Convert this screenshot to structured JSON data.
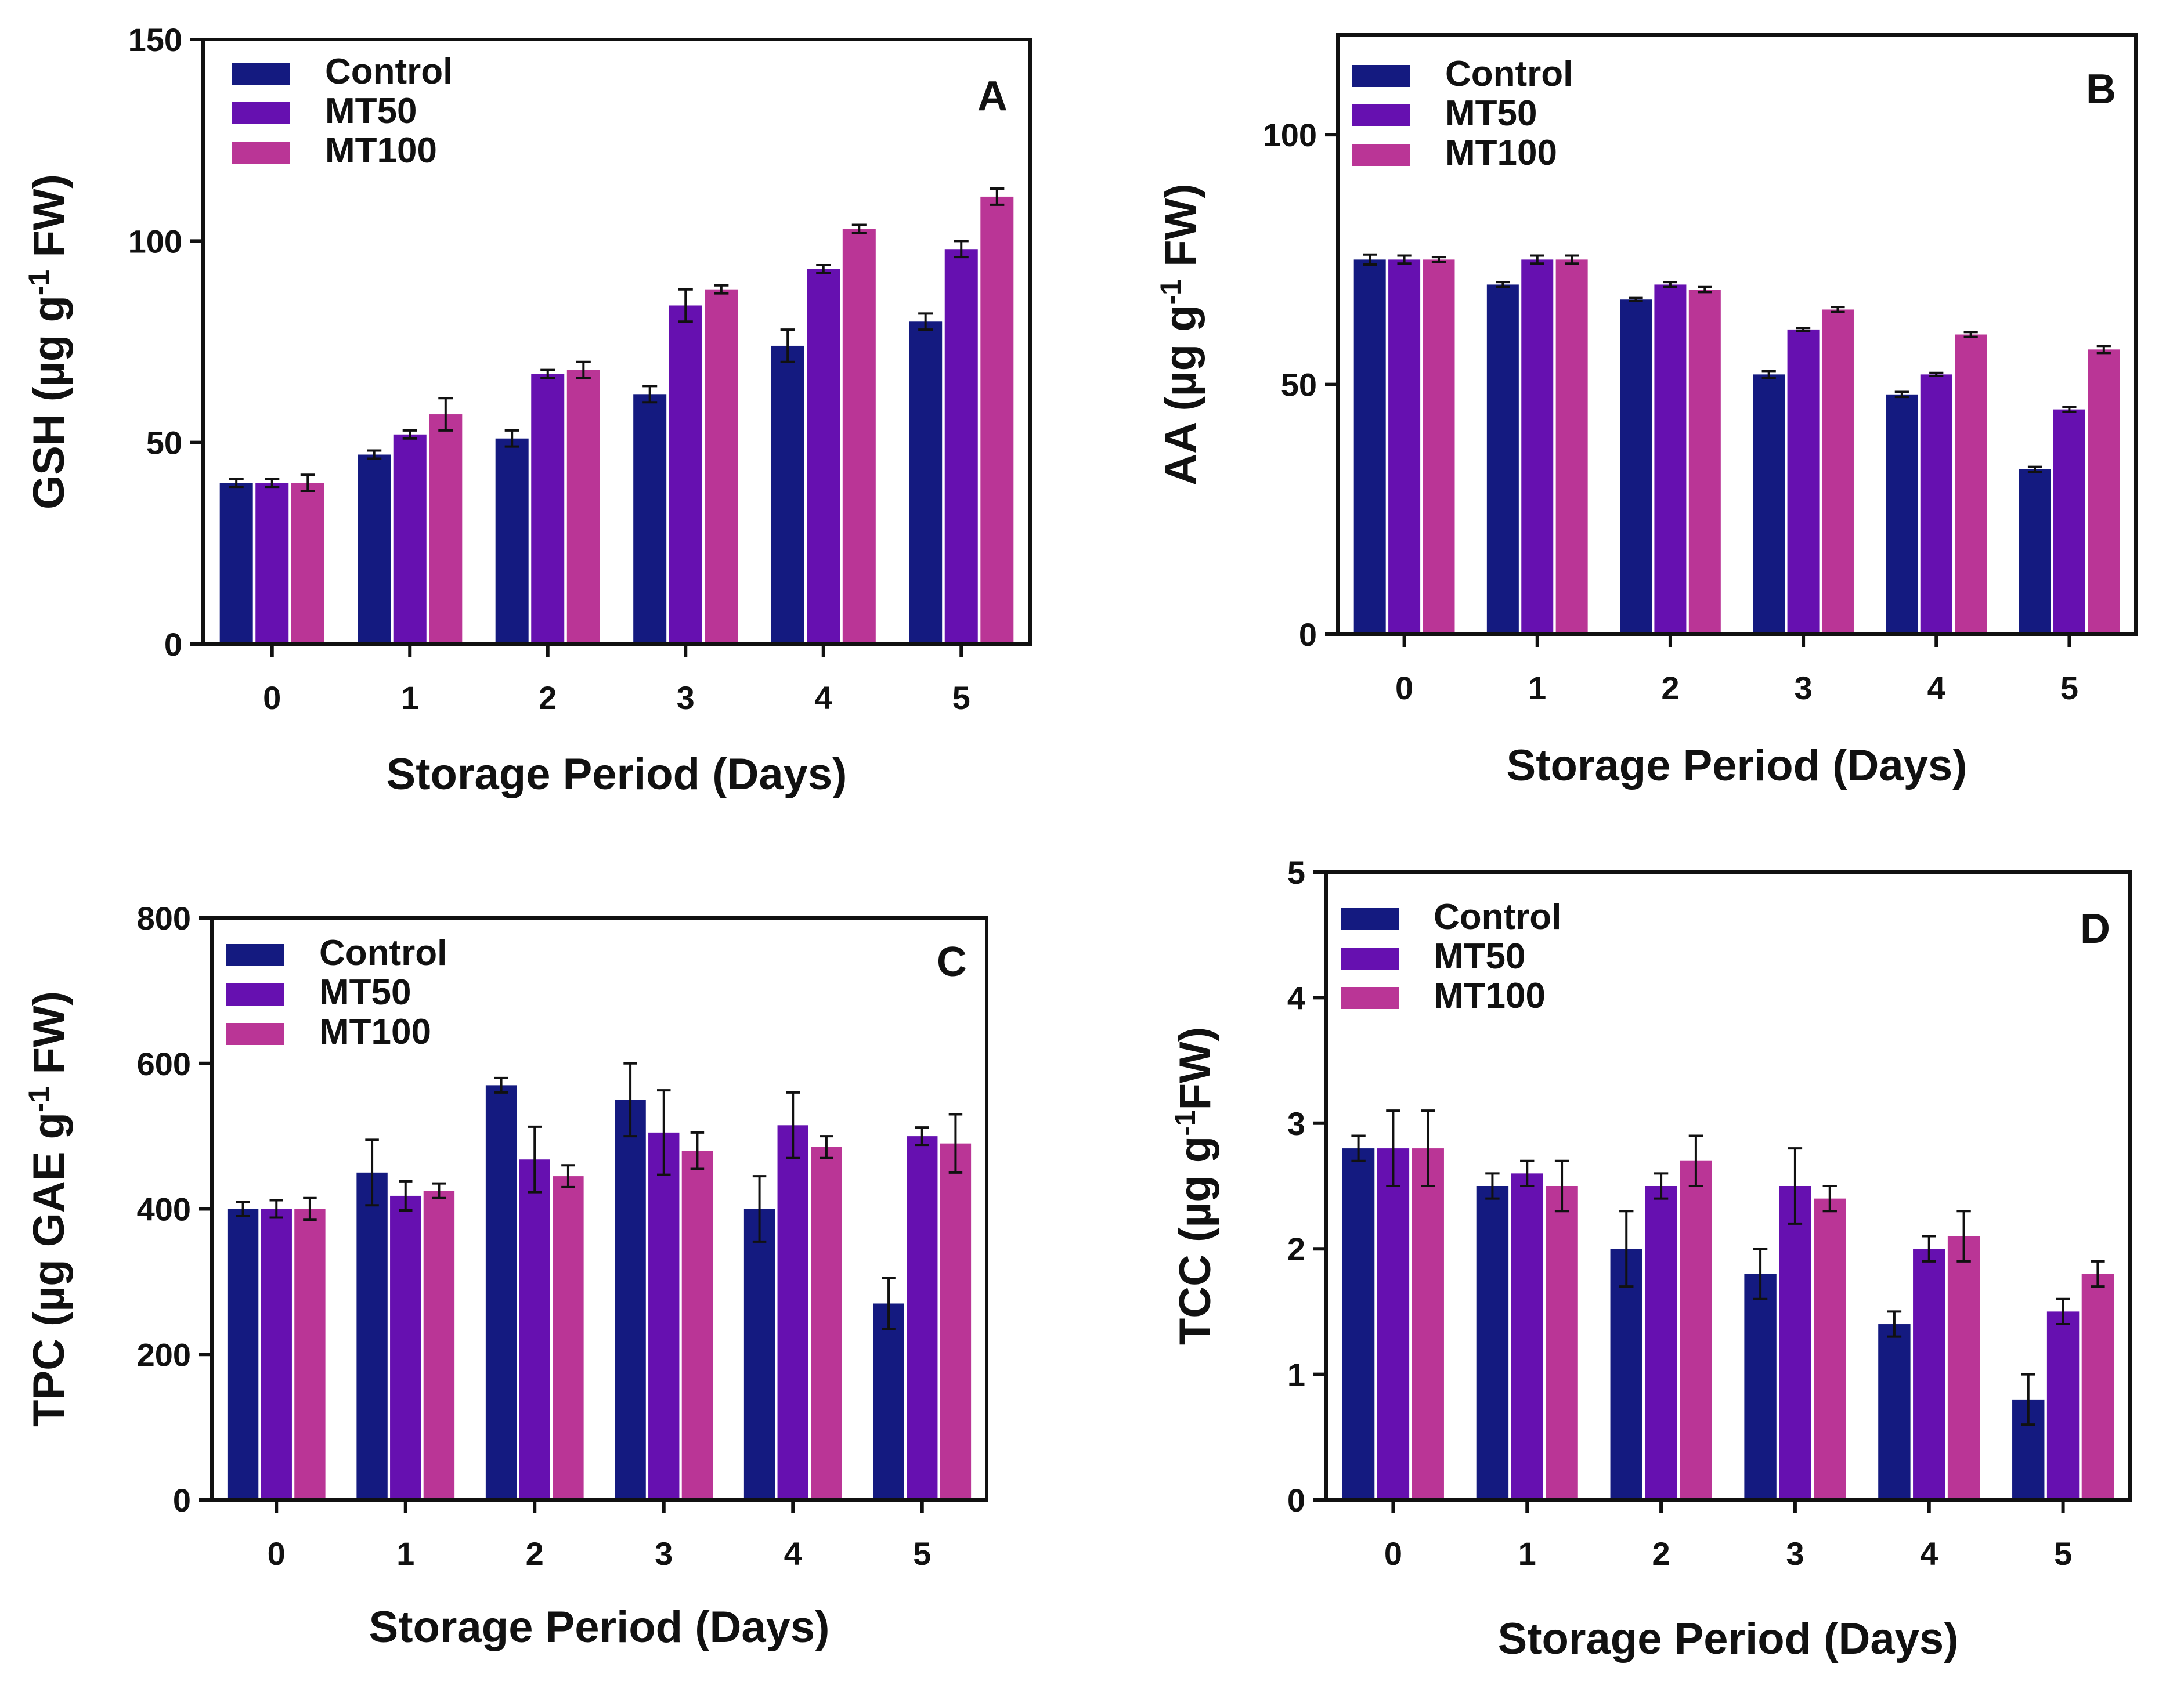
{
  "colors": {
    "Control": "#141a80",
    "MT50": "#6610b0",
    "MT100": "#ba3596",
    "axis": "#111111"
  },
  "chart_data": [
    {
      "panel": "A",
      "type": "bar",
      "title": "",
      "panel_letter": "A",
      "xlabel": "Storage Period (Days)",
      "ylabel_main": "GSH (µg g",
      "ylabel_sup": "-1",
      "ylabel_tail": " FW)",
      "categories": [
        "0",
        "1",
        "2",
        "3",
        "4",
        "5"
      ],
      "ylim": [
        0,
        150
      ],
      "yticks": [
        0,
        50,
        100,
        150
      ],
      "legend_position": "top-left",
      "series": [
        {
          "name": "Control",
          "values": [
            40,
            47,
            51,
            62,
            74,
            80
          ],
          "errors": [
            1,
            1,
            2,
            2,
            4,
            2
          ]
        },
        {
          "name": "MT50",
          "values": [
            40,
            52,
            67,
            84,
            93,
            98
          ],
          "errors": [
            1,
            1,
            1,
            4,
            1,
            2
          ]
        },
        {
          "name": "MT100",
          "values": [
            40,
            57,
            68,
            88,
            103,
            111
          ],
          "errors": [
            2,
            4,
            2,
            1,
            1,
            2
          ]
        }
      ]
    },
    {
      "panel": "B",
      "type": "bar",
      "title": "",
      "panel_letter": "B",
      "xlabel": "Storage Period (Days)",
      "ylabel_main": "AA (µg g",
      "ylabel_sup": "-1",
      "ylabel_tail": " FW)",
      "categories": [
        "0",
        "1",
        "2",
        "3",
        "4",
        "5"
      ],
      "ylim": [
        0,
        120
      ],
      "yticks": [
        0,
        50,
        100
      ],
      "legend_position": "top-left",
      "series": [
        {
          "name": "Control",
          "values": [
            75,
            70,
            67,
            52,
            48,
            33
          ],
          "errors": [
            1,
            0.5,
            0.3,
            0.7,
            0.5,
            0.5
          ]
        },
        {
          "name": "MT50",
          "values": [
            75,
            75,
            70,
            61,
            52,
            45
          ],
          "errors": [
            0.8,
            0.8,
            0.5,
            0.3,
            0.3,
            0.5
          ]
        },
        {
          "name": "MT100",
          "values": [
            75,
            75,
            69,
            65,
            60,
            57
          ],
          "errors": [
            0.5,
            0.8,
            0.5,
            0.5,
            0.5,
            0.7
          ]
        }
      ]
    },
    {
      "panel": "C",
      "type": "bar",
      "title": "",
      "panel_letter": "C",
      "xlabel": "Storage Period (Days)",
      "ylabel_main": "TPC (µg GAE g",
      "ylabel_sup": "-1",
      "ylabel_tail": " FW)",
      "categories": [
        "0",
        "1",
        "2",
        "3",
        "4",
        "5"
      ],
      "ylim": [
        0,
        800
      ],
      "yticks": [
        0,
        200,
        400,
        600,
        800
      ],
      "legend_position": "top-left",
      "series": [
        {
          "name": "Control",
          "values": [
            400,
            450,
            570,
            550,
            400,
            270
          ],
          "errors": [
            10,
            45,
            10,
            50,
            45,
            35
          ]
        },
        {
          "name": "MT50",
          "values": [
            400,
            418,
            468,
            505,
            515,
            500
          ],
          "errors": [
            12,
            20,
            45,
            58,
            45,
            12
          ]
        },
        {
          "name": "MT100",
          "values": [
            400,
            425,
            445,
            480,
            485,
            490
          ],
          "errors": [
            15,
            10,
            15,
            25,
            15,
            40
          ]
        }
      ]
    },
    {
      "panel": "D",
      "type": "bar",
      "title": "",
      "panel_letter": "D",
      "xlabel": "Storage Period (Days)",
      "ylabel_main": "TCC (µg g",
      "ylabel_sup": "-1",
      "ylabel_tail": "FW)",
      "categories": [
        "0",
        "1",
        "2",
        "3",
        "4",
        "5"
      ],
      "ylim": [
        0,
        5
      ],
      "yticks": [
        0,
        1,
        2,
        3,
        4,
        5
      ],
      "legend_position": "top-left",
      "series": [
        {
          "name": "Control",
          "values": [
            2.8,
            2.5,
            2.0,
            1.8,
            1.4,
            0.8
          ],
          "errors": [
            0.1,
            0.1,
            0.3,
            0.2,
            0.1,
            0.2
          ]
        },
        {
          "name": "MT50",
          "values": [
            2.8,
            2.6,
            2.5,
            2.5,
            2.0,
            1.5
          ],
          "errors": [
            0.3,
            0.1,
            0.1,
            0.3,
            0.1,
            0.1
          ]
        },
        {
          "name": "MT100",
          "values": [
            2.8,
            2.5,
            2.7,
            2.4,
            2.1,
            1.8
          ],
          "errors": [
            0.3,
            0.2,
            0.2,
            0.1,
            0.2,
            0.1
          ]
        }
      ]
    }
  ]
}
